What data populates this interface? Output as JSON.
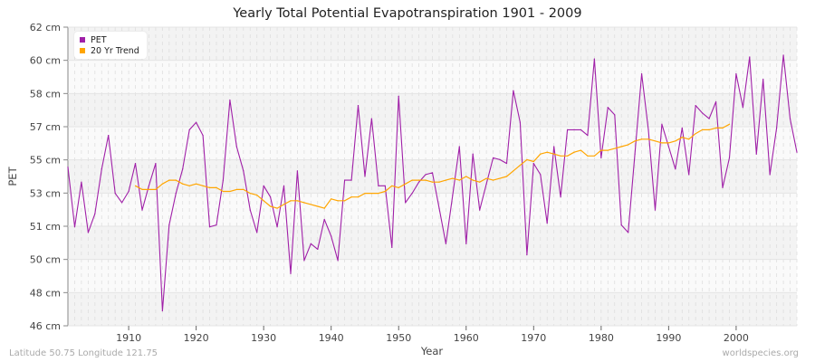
{
  "chart_data": {
    "type": "line",
    "title": "Yearly Total Potential Evapotranspiration 1901 - 2009",
    "xlabel": "Year",
    "ylabel": "PET",
    "xlim": [
      1901,
      2009
    ],
    "ylim": [
      46,
      62
    ],
    "x_ticks": [
      1910,
      1920,
      1930,
      1940,
      1950,
      1960,
      1970,
      1980,
      1990,
      2000
    ],
    "y_tick_labels": [
      "46 cm",
      "48 cm",
      "50 cm",
      "51 cm",
      "53 cm",
      "55 cm",
      "57 cm",
      "58 cm",
      "60 cm",
      "62 cm"
    ],
    "grid": true,
    "legend_position": "top-left",
    "series": [
      {
        "name": "PET",
        "color": "#a020a8",
        "x_start": 1901,
        "values": [
          54.5,
          51.3,
          53.7,
          51.0,
          52.0,
          54.4,
          56.2,
          53.1,
          52.6,
          53.2,
          54.7,
          52.2,
          53.5,
          54.7,
          46.8,
          51.4,
          53.1,
          54.4,
          56.5,
          56.9,
          56.2,
          51.3,
          51.4,
          53.8,
          58.1,
          55.6,
          54.3,
          52.2,
          51.0,
          53.5,
          52.9,
          51.3,
          53.5,
          48.8,
          54.3,
          49.5,
          50.4,
          50.1,
          51.7,
          50.8,
          49.5,
          53.8,
          53.8,
          57.8,
          54.0,
          57.1,
          53.5,
          53.5,
          50.2,
          58.3,
          52.6,
          53.1,
          53.7,
          54.1,
          54.2,
          52.3,
          50.4,
          53.0,
          55.6,
          50.4,
          55.2,
          52.2,
          53.6,
          55.0,
          54.9,
          54.7,
          58.6,
          56.9,
          49.8,
          54.7,
          54.1,
          51.5,
          55.6,
          52.9,
          56.5,
          56.5,
          56.5,
          56.2,
          60.3,
          55.0,
          57.7,
          57.3,
          51.4,
          51.0,
          55.2,
          59.5,
          56.5,
          52.2,
          56.8,
          55.6,
          54.4,
          56.6,
          54.1,
          57.8,
          57.4,
          57.1,
          58.0,
          53.4,
          55.0,
          59.5,
          57.7,
          60.4,
          55.2,
          59.2,
          54.1,
          56.6,
          60.5,
          57.1,
          55.3
        ]
      },
      {
        "name": "20 Yr Trend",
        "color": "#ffa500",
        "x_start": 1911,
        "values": [
          53.5,
          53.3,
          53.3,
          53.3,
          53.6,
          53.8,
          53.8,
          53.6,
          53.5,
          53.6,
          53.5,
          53.4,
          53.4,
          53.2,
          53.2,
          53.3,
          53.3,
          53.1,
          53.0,
          52.7,
          52.4,
          52.3,
          52.5,
          52.7,
          52.7,
          52.6,
          52.5,
          52.4,
          52.3,
          52.8,
          52.7,
          52.7,
          52.9,
          52.9,
          53.1,
          53.1,
          53.1,
          53.2,
          53.5,
          53.4,
          53.6,
          53.8,
          53.8,
          53.8,
          53.7,
          53.7,
          53.8,
          53.9,
          53.8,
          54.0,
          53.8,
          53.7,
          53.9,
          53.8,
          53.9,
          54.0,
          54.3,
          54.6,
          54.9,
          54.8,
          55.2,
          55.3,
          55.2,
          55.1,
          55.1,
          55.3,
          55.4,
          55.1,
          55.1,
          55.4,
          55.4,
          55.5,
          55.6,
          55.7,
          55.9,
          56.0,
          56.0,
          55.9,
          55.8,
          55.8,
          55.9,
          56.1,
          56.0,
          56.3,
          56.5,
          56.5,
          56.6,
          56.6,
          56.8
        ]
      }
    ]
  },
  "footer": {
    "location": "Latitude 50.75 Longitude 121.75",
    "source": "worldspecies.org"
  }
}
